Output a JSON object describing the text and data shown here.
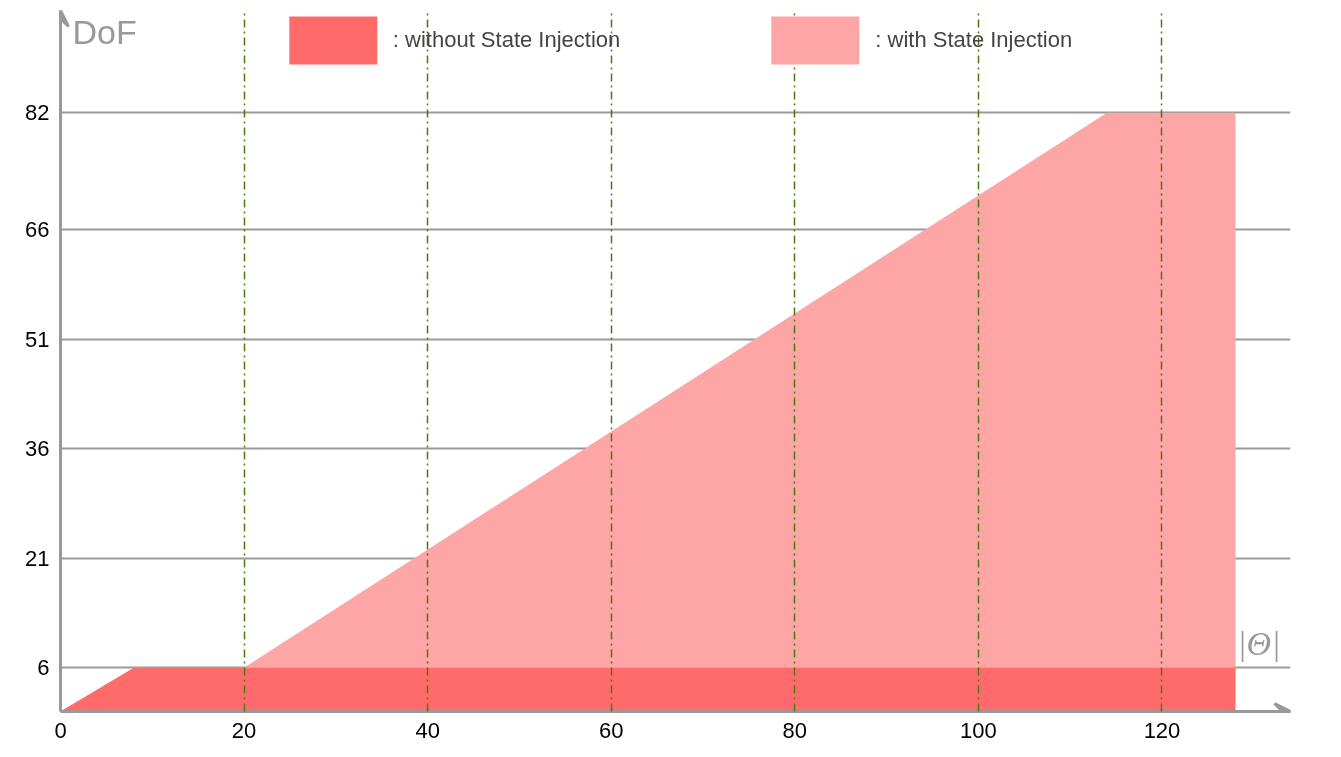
{
  "chart_data": {
    "type": "area",
    "xlabel": "|Θ|",
    "ylabel": "DoF",
    "legend": "top",
    "series": [
      {
        "name": ": with State Injection",
        "color": "#fea5a5",
        "x": [
          0,
          8,
          20,
          114,
          128
        ],
        "values": [
          0,
          6,
          6,
          82,
          82
        ]
      },
      {
        "name": ": without State Injection",
        "color": "#ff6b6b",
        "x": [
          0,
          8,
          128
        ],
        "values": [
          0,
          6,
          6
        ]
      }
    ],
    "xlim": [
      0,
      134
    ],
    "ylim": [
      0,
      96
    ],
    "xticks": [
      0,
      20,
      40,
      60,
      80,
      100,
      120
    ],
    "yticks": [
      6,
      21,
      36,
      51,
      66,
      82
    ],
    "grid": true
  }
}
